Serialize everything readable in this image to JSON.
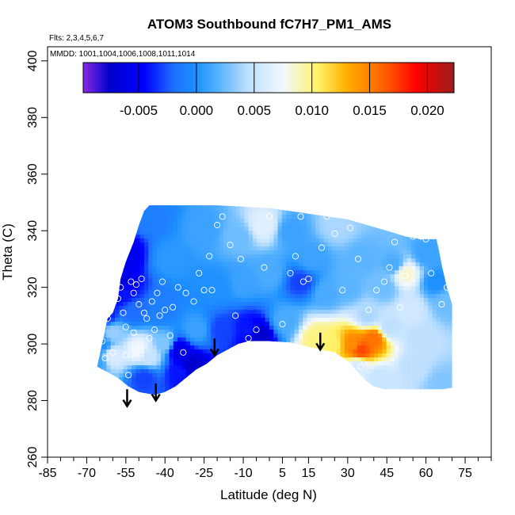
{
  "chart_data": {
    "type": "heatmap",
    "title": "ATOM3 Southbound fC7H7_PM1_AMS",
    "flights_note": "Flts: 2,3,4,5,6,7",
    "dates_note": "MMDD: 1001,1004,1006,1008,1011,1014",
    "xlabel": "Latitude (deg N)",
    "ylabel": "Theta (C)",
    "xlim": [
      -85,
      85
    ],
    "ylim": [
      260,
      405
    ],
    "x_ticks": [
      -85,
      -70,
      -55,
      -40,
      -25,
      -10,
      5,
      15,
      30,
      45,
      60,
      75
    ],
    "x_minor_ticks": [
      -80,
      -75,
      -65,
      -60,
      -50,
      -45,
      -35,
      -30,
      -20,
      -15,
      -5,
      0,
      10,
      20,
      25,
      35,
      40,
      50,
      55,
      65,
      70,
      80,
      85
    ],
    "y_ticks": [
      260,
      280,
      300,
      320,
      340,
      360,
      380,
      400
    ],
    "colorbar": {
      "range": [
        -0.0098,
        0.0223
      ],
      "ticks": [
        -0.005,
        0.0,
        0.005,
        0.01,
        0.015,
        0.02
      ],
      "tick_labels": [
        "-0.005",
        "0.000",
        "0.005",
        "0.010",
        "0.015",
        "0.020"
      ],
      "stops": [
        {
          "v": -0.0098,
          "c": "#8a2be2"
        },
        {
          "v": -0.0075,
          "c": "#0000cd"
        },
        {
          "v": -0.0045,
          "c": "#0000ff"
        },
        {
          "v": -0.002,
          "c": "#1e6fff"
        },
        {
          "v": 0.0,
          "c": "#1e90ff"
        },
        {
          "v": 0.002,
          "c": "#5ab4ff"
        },
        {
          "v": 0.0045,
          "c": "#bfe0ff"
        },
        {
          "v": 0.0075,
          "c": "#f2f8ff"
        },
        {
          "v": 0.0105,
          "c": "#fff26a"
        },
        {
          "v": 0.013,
          "c": "#ffb000"
        },
        {
          "v": 0.0165,
          "c": "#ff5a00"
        },
        {
          "v": 0.019,
          "c": "#ff0000"
        },
        {
          "v": 0.0223,
          "c": "#9b1c1c"
        }
      ]
    },
    "field_domain": {
      "top_theta": 349,
      "upper_edge": [
        [
          -62,
          309
        ],
        [
          -60,
          311
        ],
        [
          -58,
          316
        ],
        [
          -57,
          323
        ],
        [
          -55,
          329
        ],
        [
          -52,
          336
        ],
        [
          -50,
          342
        ],
        [
          -48,
          347
        ],
        [
          -46,
          349
        ],
        [
          -20,
          349
        ],
        [
          0,
          348
        ],
        [
          30,
          344
        ],
        [
          45,
          340
        ],
        [
          52,
          338
        ],
        [
          58,
          337
        ],
        [
          64,
          337
        ],
        [
          65,
          333
        ],
        [
          66,
          328
        ],
        [
          68,
          320
        ],
        [
          70,
          314
        ]
      ],
      "lower_edge": [
        [
          -66,
          292
        ],
        [
          -62,
          290
        ],
        [
          -58,
          288
        ],
        [
          -54,
          285
        ],
        [
          -50,
          283
        ],
        [
          -44,
          282
        ],
        [
          -40,
          283
        ],
        [
          -36,
          285
        ],
        [
          -32,
          288
        ],
        [
          -28,
          291
        ],
        [
          -24,
          293
        ],
        [
          -20,
          296
        ],
        [
          -16,
          298
        ],
        [
          -12,
          300
        ],
        [
          -8,
          301
        ],
        [
          0,
          301
        ],
        [
          8,
          300.5
        ],
        [
          15,
          299
        ],
        [
          20,
          298
        ],
        [
          25,
          297
        ],
        [
          30,
          294
        ],
        [
          34,
          290
        ],
        [
          37,
          287
        ],
        [
          40,
          285
        ],
        [
          44,
          284
        ],
        [
          50,
          284
        ],
        [
          56,
          284
        ],
        [
          62,
          284
        ],
        [
          66,
          284
        ],
        [
          70,
          284.5
        ]
      ]
    },
    "field_samples": [
      [
        -64,
        300,
        0.0
      ],
      [
        -60,
        304,
        0.0035
      ],
      [
        -60,
        296,
        0.006
      ],
      [
        -58,
        320,
        -0.0075
      ],
      [
        -55,
        332,
        -0.0055
      ],
      [
        -52,
        312,
        -0.002
      ],
      [
        -50,
        298,
        0.0075
      ],
      [
        -48,
        288,
        -0.003
      ],
      [
        -46,
        296,
        0.005
      ],
      [
        -46,
        345,
        -0.001
      ],
      [
        -42,
        312,
        -0.001
      ],
      [
        -40,
        300,
        0.003
      ],
      [
        -38,
        330,
        0.0005
      ],
      [
        -35,
        298,
        -0.006
      ],
      [
        -34,
        290,
        -0.004
      ],
      [
        -30,
        292,
        -0.0075
      ],
      [
        -28,
        305,
        0.001
      ],
      [
        -25,
        340,
        0.001
      ],
      [
        -20,
        320,
        0.0
      ],
      [
        -18,
        305,
        -0.003
      ],
      [
        -12,
        338,
        0.0025
      ],
      [
        -10,
        322,
        0.001
      ],
      [
        -8,
        305,
        -0.004
      ],
      [
        -4,
        303,
        -0.0075
      ],
      [
        -2,
        342,
        0.0065
      ],
      [
        0,
        325,
        0.0015
      ],
      [
        6,
        308,
        0.0015
      ],
      [
        8,
        340,
        0.001
      ],
      [
        12,
        322,
        -0.003
      ],
      [
        16,
        330,
        0.001
      ],
      [
        18,
        302,
        0.01
      ],
      [
        22,
        318,
        0.0015
      ],
      [
        24,
        300,
        0.0105
      ],
      [
        26,
        342,
        0.004
      ],
      [
        30,
        320,
        0.002
      ],
      [
        32,
        300,
        0.0145
      ],
      [
        34,
        292,
        0.006
      ],
      [
        35,
        298,
        0.017
      ],
      [
        36,
        330,
        0.002
      ],
      [
        38,
        310,
        0.004
      ],
      [
        40,
        302,
        0.0155
      ],
      [
        42,
        288,
        0.005
      ],
      [
        44,
        320,
        0.0025
      ],
      [
        46,
        306,
        0.0045
      ],
      [
        48,
        328,
        0.0015
      ],
      [
        52,
        325,
        0.0085
      ],
      [
        54,
        312,
        0.0055
      ],
      [
        56,
        292,
        0.0045
      ],
      [
        58,
        302,
        0.0045
      ],
      [
        60,
        332,
        0.001
      ],
      [
        64,
        322,
        0.0
      ],
      [
        66,
        286,
        0.003
      ],
      [
        68,
        315,
        0.0025
      ],
      [
        -66,
        294,
        0.001
      ],
      [
        -63,
        310,
        -0.004
      ],
      [
        -56,
        318,
        -0.004
      ]
    ],
    "observations": [
      [
        -68,
        308
      ],
      [
        -70,
        294
      ],
      [
        -68,
        291
      ],
      [
        -66,
        300
      ],
      [
        -64,
        301
      ],
      [
        -63,
        295
      ],
      [
        -62,
        309
      ],
      [
        -61,
        313
      ],
      [
        -60,
        297
      ],
      [
        -59,
        323
      ],
      [
        -58,
        316
      ],
      [
        -57,
        320
      ],
      [
        -56,
        311
      ],
      [
        -55,
        306
      ],
      [
        -55,
        296
      ],
      [
        -54,
        289
      ],
      [
        -53,
        322
      ],
      [
        -52,
        318
      ],
      [
        -52,
        304
      ],
      [
        -51,
        321
      ],
      [
        -50,
        314
      ],
      [
        -49,
        323
      ],
      [
        -48,
        311
      ],
      [
        -47,
        309
      ],
      [
        -46,
        302
      ],
      [
        -45,
        315
      ],
      [
        -44,
        305
      ],
      [
        -43,
        318
      ],
      [
        -42,
        310
      ],
      [
        -41,
        322
      ],
      [
        -40,
        312
      ],
      [
        -38,
        303
      ],
      [
        -37,
        313
      ],
      [
        -35,
        320
      ],
      [
        -33,
        297
      ],
      [
        -32,
        318
      ],
      [
        -29,
        315
      ],
      [
        -27,
        325
      ],
      [
        -25,
        319
      ],
      [
        -23,
        331
      ],
      [
        -22,
        319
      ],
      [
        -20,
        342
      ],
      [
        -18,
        345
      ],
      [
        -15,
        335
      ],
      [
        -13,
        310
      ],
      [
        -11,
        330
      ],
      [
        -8,
        302
      ],
      [
        -5,
        305
      ],
      [
        -2,
        327
      ],
      [
        0,
        345
      ],
      [
        5,
        307
      ],
      [
        8,
        325
      ],
      [
        10,
        331
      ],
      [
        12,
        345
      ],
      [
        13,
        322
      ],
      [
        15,
        323
      ],
      [
        20,
        334
      ],
      [
        22,
        345
      ],
      [
        25,
        339
      ],
      [
        28,
        319
      ],
      [
        31,
        341
      ],
      [
        34,
        330
      ],
      [
        35,
        292
      ],
      [
        38,
        312
      ],
      [
        41,
        319
      ],
      [
        44,
        322
      ],
      [
        46,
        327
      ],
      [
        48,
        336
      ],
      [
        50,
        313
      ],
      [
        52,
        324
      ],
      [
        55,
        338
      ],
      [
        58,
        338
      ],
      [
        60,
        337
      ],
      [
        62,
        325
      ],
      [
        66,
        314
      ],
      [
        68,
        320
      ]
    ],
    "arrows": [
      -54.5,
      -43.5,
      -21,
      19.5
    ],
    "arrow_theta": [
      [
        284,
        278
      ],
      [
        286,
        280
      ],
      [
        302,
        296
      ],
      [
        304,
        298
      ]
    ]
  }
}
